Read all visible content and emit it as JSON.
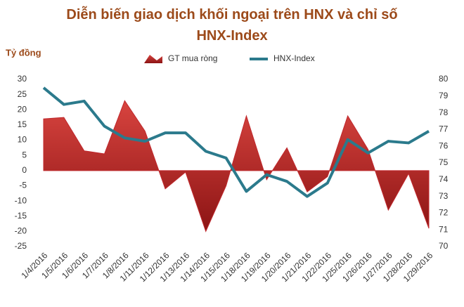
{
  "chart_data": {
    "type": "area-line",
    "title": "Diễn biến giao dịch khối ngoại trên HNX và chỉ số HNX-Index",
    "y_label": "Tỷ đồng",
    "categories": [
      "1/4/2016",
      "1/5/2016",
      "1/6/2016",
      "1/7/2016",
      "1/8/2016",
      "1/11/2016",
      "1/12/2016",
      "1/13/2016",
      "1/14/2016",
      "1/15/2016",
      "1/18/2016",
      "1/19/2016",
      "1/20/2016",
      "1/21/2016",
      "1/22/2016",
      "1/25/2016",
      "1/26/2016",
      "1/27/2016",
      "1/28/2016",
      "1/29/2016"
    ],
    "series": [
      {
        "name": "GT mua ròng",
        "kind": "area",
        "color": "#c0282d",
        "axis": "y",
        "values": [
          17,
          17.5,
          6.5,
          5.5,
          23,
          13,
          -6,
          -0.5,
          -20,
          -5,
          18,
          -3,
          7.5,
          -7,
          -2,
          18,
          7,
          -13,
          -1,
          -19
        ]
      },
      {
        "name": "HNX-Index",
        "kind": "line",
        "color": "#2b7a8c",
        "axis": "y2",
        "values": [
          79.5,
          78.5,
          78.7,
          77.2,
          76.5,
          76.3,
          76.8,
          76.8,
          75.7,
          75.3,
          73.3,
          74.3,
          73.9,
          73.0,
          73.8,
          76.4,
          75.6,
          76.3,
          76.2,
          76.9
        ]
      }
    ],
    "ylim": [
      -25,
      30
    ],
    "yticks": [
      -25,
      -20,
      -15,
      -10,
      -5,
      0,
      5,
      10,
      15,
      20,
      25,
      30
    ],
    "y2lim": [
      70,
      80
    ],
    "y2ticks": [
      70,
      71,
      72,
      73,
      74,
      75,
      76,
      77,
      78,
      79,
      80
    ],
    "legend": "top",
    "grid": false
  }
}
